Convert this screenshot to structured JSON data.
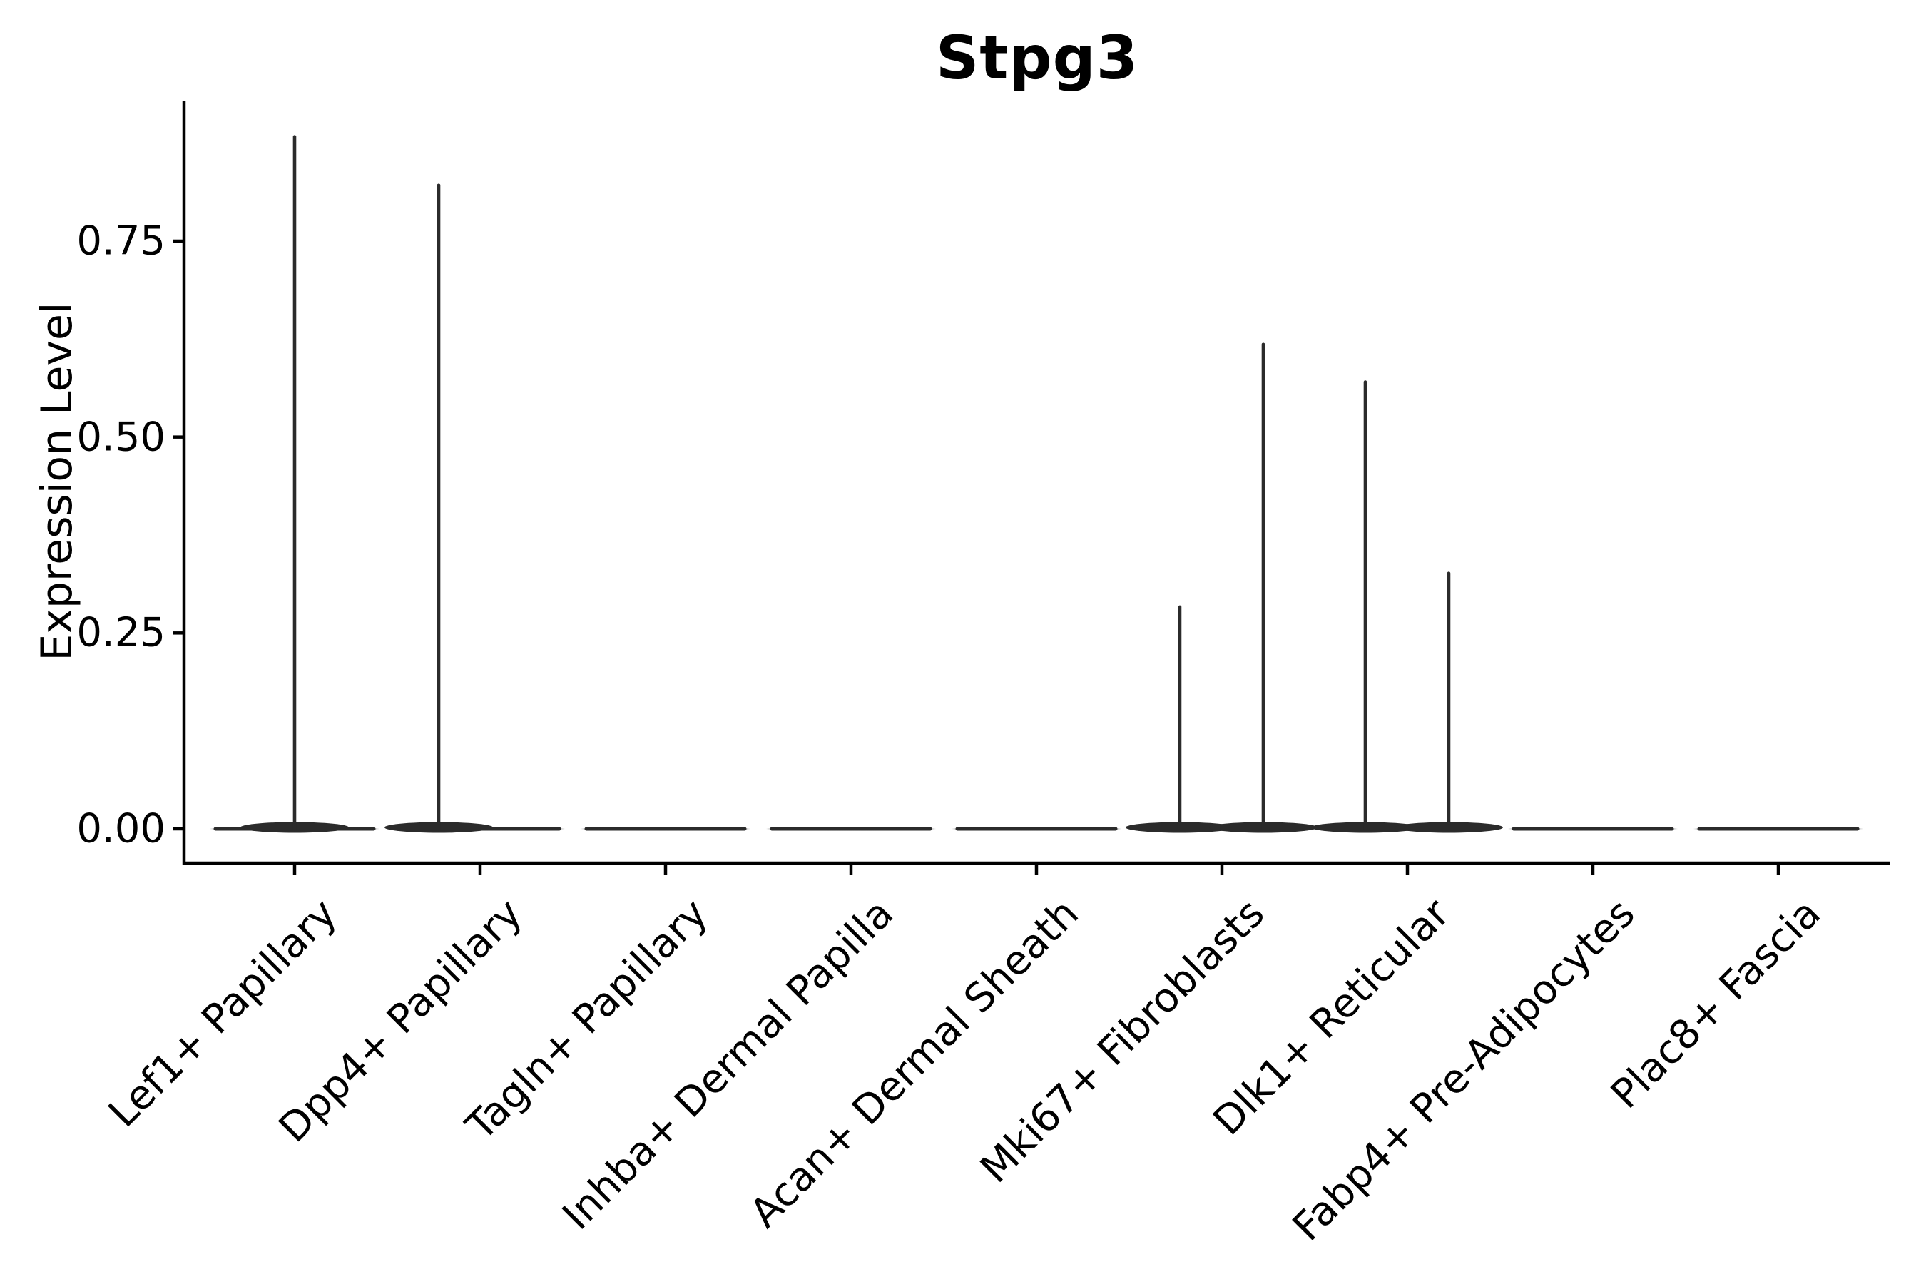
{
  "title": "Stpg3",
  "y_axis": {
    "label": "Expression Level",
    "tick_labels": [
      "0.00",
      "0.25",
      "0.50",
      "0.75"
    ],
    "tick_values": [
      0.0,
      0.25,
      0.5,
      0.75
    ]
  },
  "x_axis": {
    "categories": [
      "Lef1+ Papillary",
      "Dpp4+ Papillary",
      "Tagln+ Papillary",
      "Inhba+ Dermal Papilla",
      "Acan+ Dermal Sheath",
      "Mki67+ Fibroblasts",
      "Dlk1+ Reticular",
      "Fabp4+ Pre-Adipocytes",
      "Plac8+ Fascia"
    ]
  },
  "chart_data": {
    "type": "violin",
    "title": "Stpg3",
    "xlabel": "",
    "ylabel": "Expression Level",
    "ylim": [
      -0.044,
      0.93
    ],
    "yticks": [
      0.0,
      0.25,
      0.5,
      0.75
    ],
    "grid": false,
    "legend": "none",
    "categories": [
      "Lef1+ Papillary",
      "Dpp4+ Papillary",
      "Tagln+ Papillary",
      "Inhba+ Dermal Papilla",
      "Acan+ Dermal Sheath",
      "Mki67+ Fibroblasts",
      "Dlk1+ Reticular",
      "Fabp4+ Pre-Adipocytes",
      "Plac8+ Fascia"
    ],
    "violins": [
      {
        "category": "Lef1+ Papillary",
        "baseline_value": 0,
        "spikes": [
          {
            "offset": 0.0,
            "max": 0.885
          }
        ]
      },
      {
        "category": "Dpp4+ Papillary",
        "baseline_value": 0,
        "spikes": [
          {
            "offset": -0.223,
            "max": 0.823
          }
        ]
      },
      {
        "category": "Tagln+ Papillary",
        "baseline_value": 0,
        "spikes": []
      },
      {
        "category": "Inhba+ Dermal Papilla",
        "baseline_value": 0,
        "spikes": []
      },
      {
        "category": "Acan+ Dermal Sheath",
        "baseline_value": 0,
        "spikes": []
      },
      {
        "category": "Mki67+ Fibroblasts",
        "baseline_value": 0,
        "spikes": [
          {
            "offset": -0.227,
            "max": 0.285
          },
          {
            "offset": 0.223,
            "max": 0.62
          }
        ]
      },
      {
        "category": "Dlk1+ Reticular",
        "baseline_value": 0,
        "spikes": [
          {
            "offset": -0.227,
            "max": 0.572
          },
          {
            "offset": 0.223,
            "max": 0.328
          }
        ]
      },
      {
        "category": "Fabp4+ Pre-Adipocytes",
        "baseline_value": 0,
        "spikes": []
      },
      {
        "category": "Plac8+ Fascia",
        "baseline_value": 0,
        "spikes": []
      }
    ],
    "style": {
      "violin_color": "#2b2b2b",
      "axis_color": "#000000",
      "text_color": "#000000",
      "background": "#ffffff"
    }
  }
}
